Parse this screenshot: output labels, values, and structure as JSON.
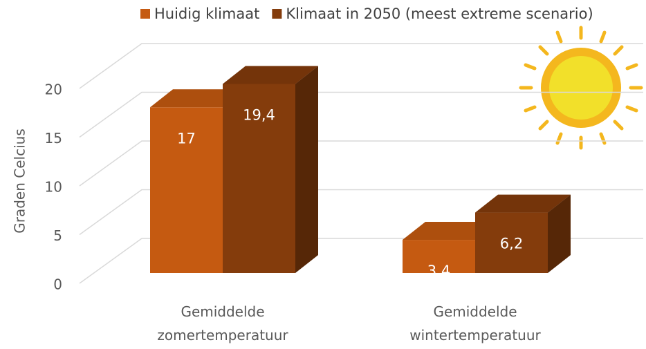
{
  "chart_data": {
    "type": "bar3d",
    "y_label": "Graden Celcius",
    "categories": [
      "Gemiddelde zomertemperatuur",
      "Gemiddelde wintertemperatuur"
    ],
    "series": [
      {
        "name": "Huidig klimaat",
        "color": "#c55a11",
        "values": [
          17,
          3.4
        ],
        "value_labels": [
          "17",
          "3,4"
        ]
      },
      {
        "name": "Klimaat in 2050 (meest extreme scenario)",
        "color": "#843c0c",
        "values": [
          19.4,
          6.2
        ],
        "value_labels": [
          "19,4",
          "6,2"
        ]
      }
    ],
    "ylim": [
      0,
      20
    ],
    "yticks": [
      0,
      5,
      10,
      15,
      20
    ],
    "grid": true,
    "legend": "top"
  }
}
